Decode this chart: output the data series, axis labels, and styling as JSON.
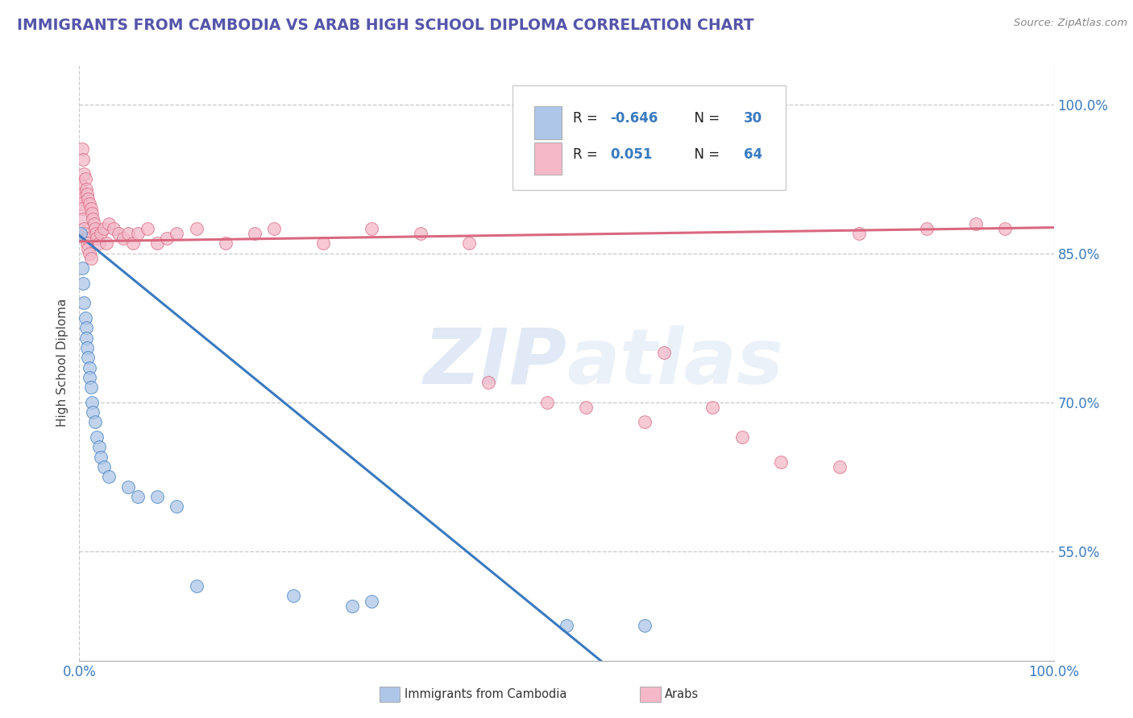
{
  "title": "IMMIGRANTS FROM CAMBODIA VS ARAB HIGH SCHOOL DIPLOMA CORRELATION CHART",
  "source": "Source: ZipAtlas.com",
  "ylabel": "High School Diploma",
  "watermark_zip": "ZIP",
  "watermark_atlas": "atlas",
  "xlim": [
    0.0,
    1.0
  ],
  "ylim": [
    0.44,
    1.04
  ],
  "yticks": [
    0.55,
    0.7,
    0.85,
    1.0
  ],
  "ytick_labels": [
    "55.0%",
    "70.0%",
    "85.0%",
    "100.0%"
  ],
  "xtick_labels": [
    "0.0%",
    "100.0%"
  ],
  "xticks": [
    0.0,
    1.0
  ],
  "legend_r_cambodia": "-0.646",
  "legend_n_cambodia": "30",
  "legend_r_arab": "0.051",
  "legend_n_arab": "64",
  "color_cambodia": "#aec6e8",
  "color_arab": "#f4b8c8",
  "line_color_cambodia": "#3a7abf",
  "line_color_arab": "#d96880",
  "background_color": "#ffffff",
  "grid_color": "#bbbbbb",
  "title_color": "#5555aa",
  "source_color": "#888888",
  "cambodia_x": [
    0.001,
    0.003,
    0.004,
    0.005,
    0.006,
    0.007,
    0.007,
    0.008,
    0.009,
    0.01,
    0.01,
    0.012,
    0.013,
    0.014,
    0.016,
    0.018,
    0.02,
    0.022,
    0.025,
    0.03,
    0.05,
    0.06,
    0.08,
    0.1,
    0.12,
    0.22,
    0.28,
    0.3,
    0.5,
    0.58
  ],
  "cambodia_y": [
    0.87,
    0.835,
    0.82,
    0.8,
    0.785,
    0.775,
    0.765,
    0.755,
    0.745,
    0.735,
    0.725,
    0.715,
    0.7,
    0.69,
    0.68,
    0.665,
    0.655,
    0.645,
    0.635,
    0.625,
    0.615,
    0.605,
    0.605,
    0.595,
    0.515,
    0.505,
    0.495,
    0.5,
    0.475,
    0.475
  ],
  "arab_x": [
    0.001,
    0.001,
    0.002,
    0.002,
    0.003,
    0.003,
    0.004,
    0.004,
    0.005,
    0.005,
    0.006,
    0.006,
    0.007,
    0.007,
    0.008,
    0.008,
    0.009,
    0.009,
    0.01,
    0.01,
    0.012,
    0.012,
    0.013,
    0.014,
    0.015,
    0.016,
    0.017,
    0.018,
    0.02,
    0.022,
    0.025,
    0.028,
    0.03,
    0.035,
    0.04,
    0.045,
    0.05,
    0.055,
    0.06,
    0.07,
    0.08,
    0.09,
    0.1,
    0.12,
    0.15,
    0.18,
    0.2,
    0.25,
    0.3,
    0.35,
    0.4,
    0.42,
    0.48,
    0.52,
    0.58,
    0.6,
    0.65,
    0.68,
    0.72,
    0.78,
    0.8,
    0.87,
    0.92,
    0.95
  ],
  "arab_y": [
    0.92,
    0.91,
    0.905,
    0.9,
    0.955,
    0.895,
    0.945,
    0.885,
    0.93,
    0.875,
    0.925,
    0.87,
    0.915,
    0.865,
    0.91,
    0.86,
    0.905,
    0.855,
    0.9,
    0.85,
    0.895,
    0.845,
    0.89,
    0.885,
    0.88,
    0.875,
    0.87,
    0.865,
    0.86,
    0.87,
    0.875,
    0.86,
    0.88,
    0.875,
    0.87,
    0.865,
    0.87,
    0.86,
    0.87,
    0.875,
    0.86,
    0.865,
    0.87,
    0.875,
    0.86,
    0.87,
    0.875,
    0.86,
    0.875,
    0.87,
    0.86,
    0.72,
    0.7,
    0.695,
    0.68,
    0.75,
    0.695,
    0.665,
    0.64,
    0.635,
    0.87,
    0.875,
    0.88,
    0.875
  ]
}
